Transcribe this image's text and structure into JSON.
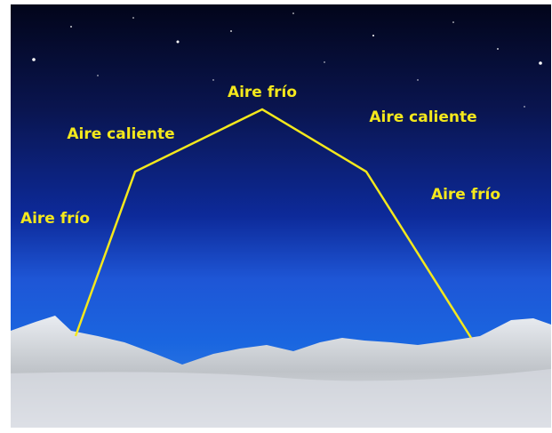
{
  "labels": {
    "top": "Aire frío",
    "upper_left": "Aire caliente",
    "upper_right": "Aire caliente",
    "lower_left": "Aire frío",
    "lower_right": "Aire frío"
  }
}
